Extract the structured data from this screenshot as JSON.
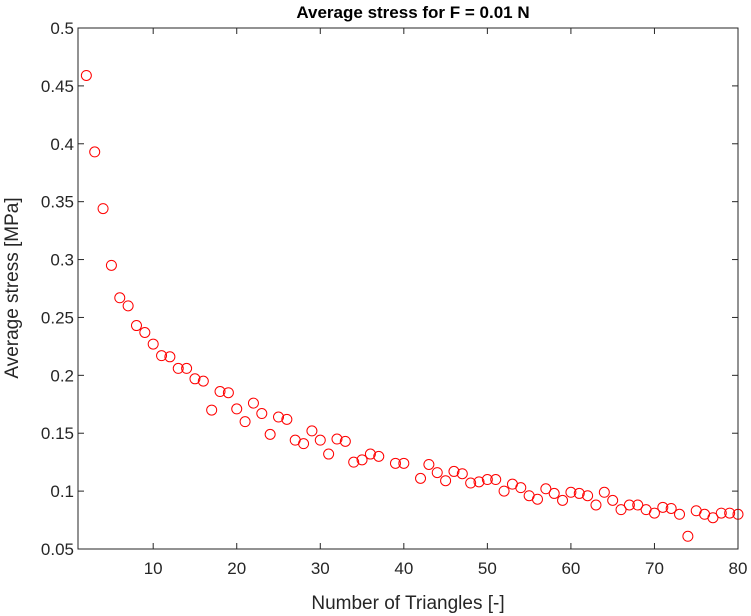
{
  "chart_data": {
    "type": "scatter",
    "title": "Average stress for F = 0.01 N",
    "xlabel": "Number of Triangles [-]",
    "ylabel": "Average stress [MPa]",
    "xlim": [
      1,
      80
    ],
    "ylim": [
      0.05,
      0.5
    ],
    "xticks": [
      10,
      20,
      30,
      40,
      50,
      60,
      70,
      80
    ],
    "yticks": [
      0.05,
      0.1,
      0.15,
      0.2,
      0.25,
      0.3,
      0.35,
      0.4,
      0.45,
      0.5
    ],
    "grid": false,
    "marker": "circle-open",
    "color": "#ff0000",
    "series": [
      {
        "x": [
          2,
          3,
          4,
          5,
          6,
          7,
          8,
          9,
          10,
          11,
          12,
          13,
          14,
          15,
          16,
          17,
          18,
          19,
          20,
          21,
          22,
          23,
          24,
          25,
          26,
          27,
          28,
          29,
          30,
          31,
          32,
          33,
          34,
          35,
          36,
          37,
          39,
          40,
          42,
          43,
          44,
          45,
          46,
          47,
          48,
          49,
          50,
          51,
          52,
          53,
          54,
          55,
          56,
          57,
          58,
          59,
          60,
          61,
          62,
          63,
          64,
          65,
          66,
          67,
          68,
          69,
          70,
          71,
          72,
          73,
          74,
          75,
          76,
          77,
          78,
          79,
          80
        ],
        "y": [
          0.459,
          0.393,
          0.344,
          0.295,
          0.267,
          0.26,
          0.243,
          0.237,
          0.227,
          0.217,
          0.216,
          0.206,
          0.206,
          0.197,
          0.195,
          0.17,
          0.186,
          0.185,
          0.171,
          0.16,
          0.176,
          0.167,
          0.149,
          0.164,
          0.162,
          0.144,
          0.141,
          0.152,
          0.144,
          0.132,
          0.145,
          0.143,
          0.125,
          0.127,
          0.132,
          0.13,
          0.124,
          0.124,
          0.111,
          0.123,
          0.116,
          0.109,
          0.117,
          0.115,
          0.107,
          0.108,
          0.11,
          0.11,
          0.1,
          0.106,
          0.103,
          0.096,
          0.093,
          0.102,
          0.098,
          0.092,
          0.099,
          0.098,
          0.096,
          0.088,
          0.099,
          0.092,
          0.084,
          0.088,
          0.088,
          0.084,
          0.081,
          0.086,
          0.085,
          0.08,
          0.061,
          0.083,
          0.08,
          0.077,
          0.081,
          0.081,
          0.08
        ]
      }
    ]
  }
}
